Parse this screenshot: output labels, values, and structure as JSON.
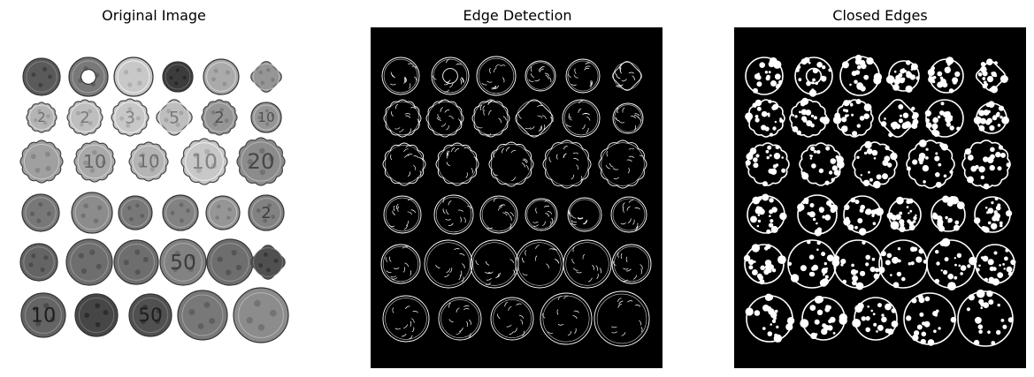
{
  "figure": {
    "panels": [
      {
        "title": "Original Image"
      },
      {
        "title": "Edge Detection"
      },
      {
        "title": "Closed Edges"
      }
    ]
  },
  "colors": {
    "figure_background": "#ffffff",
    "edge_background": "#000000",
    "edge_stroke": "#ffffff"
  },
  "image_content": {
    "subject": "arrangement of 36 coins in 6 rows",
    "coin_labels_visible": [
      "2",
      "3",
      "5",
      "10",
      "20",
      "50"
    ]
  }
}
